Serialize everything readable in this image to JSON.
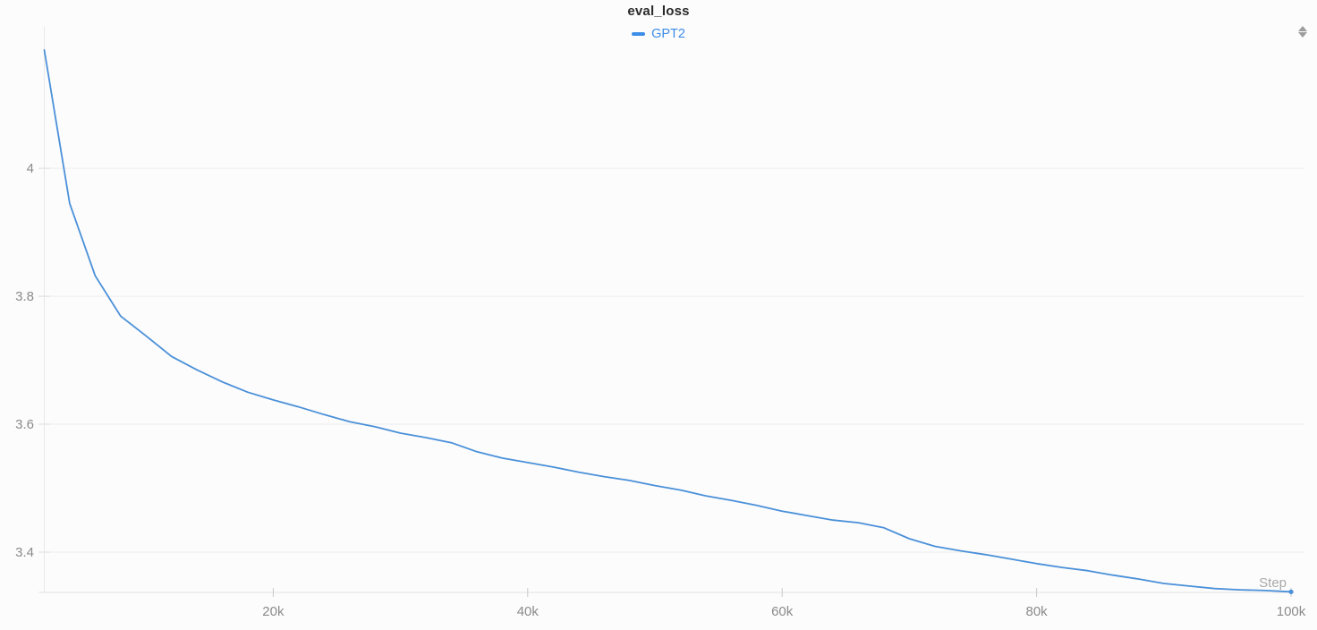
{
  "chart_data": {
    "type": "line",
    "title": "eval_loss",
    "xlabel": "Step",
    "ylabel": "",
    "legend_position": "top-center",
    "grid": "horizontal-only",
    "xlim": [
      2000,
      100000
    ],
    "ylim": [
      3.337,
      4.224
    ],
    "legend": [
      {
        "label": "GPT2",
        "color": "#3c8de8"
      }
    ],
    "x_ticks": [
      {
        "value": 20000,
        "label": "20k"
      },
      {
        "value": 40000,
        "label": "40k"
      },
      {
        "value": 60000,
        "label": "60k"
      },
      {
        "value": 80000,
        "label": "80k"
      },
      {
        "value": 100000,
        "label": "100k"
      }
    ],
    "y_ticks": [
      {
        "value": 3.4,
        "label": "3.4"
      },
      {
        "value": 3.6,
        "label": "3.6"
      },
      {
        "value": 3.8,
        "label": "3.8"
      },
      {
        "value": 4.0,
        "label": "4"
      }
    ],
    "series": [
      {
        "name": "GPT2",
        "color": "#4a90d9",
        "end_marker": true,
        "points": [
          [
            2000,
            4.185
          ],
          [
            4000,
            3.945
          ],
          [
            6000,
            3.832
          ],
          [
            8000,
            3.769
          ],
          [
            10000,
            3.738
          ],
          [
            12000,
            3.706
          ],
          [
            14000,
            3.685
          ],
          [
            16000,
            3.666
          ],
          [
            18000,
            3.65
          ],
          [
            20000,
            3.638
          ],
          [
            22000,
            3.627
          ],
          [
            24000,
            3.615
          ],
          [
            26000,
            3.604
          ],
          [
            28000,
            3.596
          ],
          [
            30000,
            3.586
          ],
          [
            32000,
            3.579
          ],
          [
            34000,
            3.571
          ],
          [
            36000,
            3.557
          ],
          [
            38000,
            3.547
          ],
          [
            40000,
            3.54
          ],
          [
            42000,
            3.533
          ],
          [
            44000,
            3.525
          ],
          [
            46000,
            3.518
          ],
          [
            48000,
            3.512
          ],
          [
            50000,
            3.504
          ],
          [
            52000,
            3.497
          ],
          [
            54000,
            3.488
          ],
          [
            56000,
            3.481
          ],
          [
            58000,
            3.473
          ],
          [
            60000,
            3.464
          ],
          [
            62000,
            3.457
          ],
          [
            64000,
            3.45
          ],
          [
            66000,
            3.446
          ],
          [
            68000,
            3.438
          ],
          [
            70000,
            3.421
          ],
          [
            72000,
            3.409
          ],
          [
            74000,
            3.402
          ],
          [
            76000,
            3.396
          ],
          [
            78000,
            3.389
          ],
          [
            80000,
            3.382
          ],
          [
            82000,
            3.376
          ],
          [
            84000,
            3.371
          ],
          [
            86000,
            3.364
          ],
          [
            88000,
            3.358
          ],
          [
            90000,
            3.351
          ],
          [
            92000,
            3.347
          ],
          [
            94000,
            3.343
          ],
          [
            96000,
            3.341
          ],
          [
            98000,
            3.34
          ],
          [
            100000,
            3.338
          ]
        ]
      }
    ]
  },
  "icons": {
    "panel_handle": "up-down-triangles"
  },
  "colors": {
    "background": "#fcfcfc",
    "title": "#2b2b2b",
    "grid": "#ededed",
    "y_tick": "#dcdcdc",
    "x_tick": "#c9c9c9",
    "axis": "#e2e2e2",
    "y_axis": "#e8e8e8",
    "tick_label": "#8b8b8b",
    "axis_label": "#a9a9a9"
  }
}
